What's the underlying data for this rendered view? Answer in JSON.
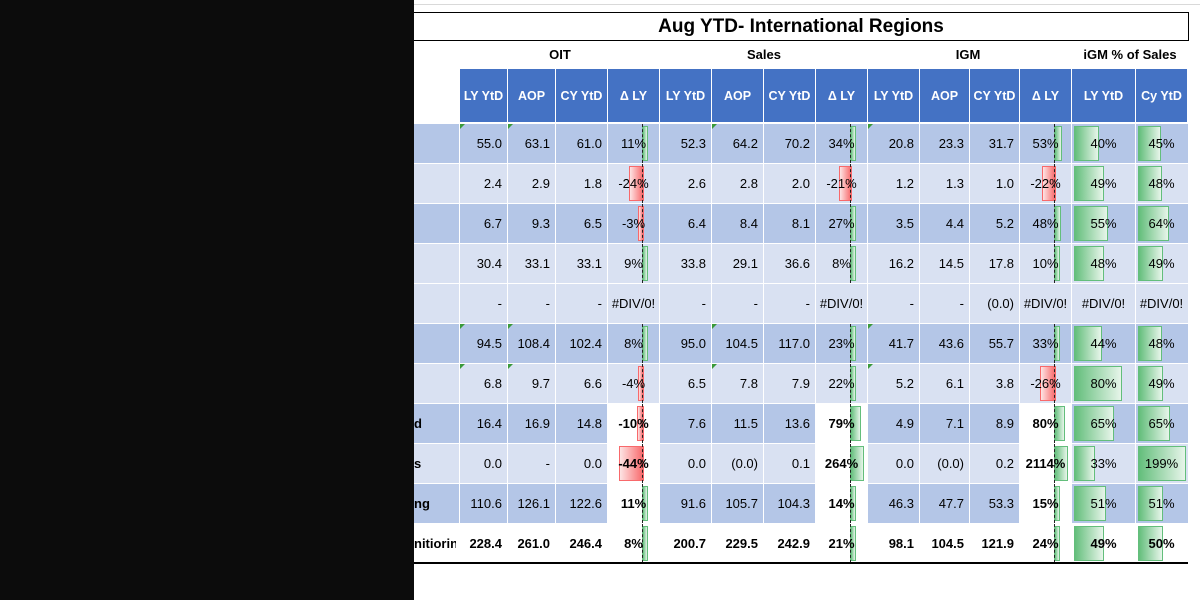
{
  "title": "Aug YTD- International Regions",
  "groups": [
    "OIT",
    "Sales",
    "IGM",
    "iGM % of Sales"
  ],
  "columns": [
    "LY YtD",
    "AOP",
    "CY YtD",
    "Δ LY",
    "LY YtD",
    "AOP",
    "CY YtD",
    "Δ LY",
    "LY YtD",
    "AOP",
    "CY YtD",
    "Δ LY",
    "LY YtD",
    "Cy YtD"
  ],
  "rows": [
    {
      "label": "",
      "bold": false,
      "oit": [
        "55.0",
        "63.1",
        "61.0",
        "11%"
      ],
      "sales": [
        "52.3",
        "64.2",
        "70.2",
        "34%"
      ],
      "igm": [
        "20.8",
        "23.3",
        "31.7",
        "53%"
      ],
      "pct": [
        "40%",
        "45%"
      ]
    },
    {
      "label": "",
      "bold": false,
      "oit": [
        "2.4",
        "2.9",
        "1.8",
        "-24%"
      ],
      "sales": [
        "2.6",
        "2.8",
        "2.0",
        "-21%"
      ],
      "igm": [
        "1.2",
        "1.3",
        "1.0",
        "-22%"
      ],
      "pct": [
        "49%",
        "48%"
      ]
    },
    {
      "label": "",
      "bold": false,
      "oit": [
        "6.7",
        "9.3",
        "6.5",
        "-3%"
      ],
      "sales": [
        "6.4",
        "8.4",
        "8.1",
        "27%"
      ],
      "igm": [
        "3.5",
        "4.4",
        "5.2",
        "48%"
      ],
      "pct": [
        "55%",
        "64%"
      ]
    },
    {
      "label": "",
      "bold": false,
      "oit": [
        "30.4",
        "33.1",
        "33.1",
        "9%"
      ],
      "sales": [
        "33.8",
        "29.1",
        "36.6",
        "8%"
      ],
      "igm": [
        "16.2",
        "14.5",
        "17.8",
        "10%"
      ],
      "pct": [
        "48%",
        "49%"
      ]
    },
    {
      "label": "",
      "bold": false,
      "oit": [
        "-",
        "-",
        "-",
        "#DIV/0!"
      ],
      "sales": [
        "-",
        "-",
        "-",
        "#DIV/0!"
      ],
      "igm": [
        "-",
        "-",
        "(0.0)",
        "#DIV/0!"
      ],
      "pct": [
        "#DIV/0!",
        "#DIV/0!"
      ]
    },
    {
      "label": "",
      "bold": false,
      "oit": [
        "94.5",
        "108.4",
        "102.4",
        "8%"
      ],
      "sales": [
        "95.0",
        "104.5",
        "117.0",
        "23%"
      ],
      "igm": [
        "41.7",
        "43.6",
        "55.7",
        "33%"
      ],
      "pct": [
        "44%",
        "48%"
      ]
    },
    {
      "label": "",
      "bold": false,
      "oit": [
        "6.8",
        "9.7",
        "6.6",
        "-4%"
      ],
      "sales": [
        "6.5",
        "7.8",
        "7.9",
        "22%"
      ],
      "igm": [
        "5.2",
        "6.1",
        "3.8",
        "-26%"
      ],
      "pct": [
        "80%",
        "49%"
      ]
    },
    {
      "label": "d",
      "bold": true,
      "oit": [
        "16.4",
        "16.9",
        "14.8",
        "-10%"
      ],
      "sales": [
        "7.6",
        "11.5",
        "13.6",
        "79%"
      ],
      "igm": [
        "4.9",
        "7.1",
        "8.9",
        "80%"
      ],
      "pct": [
        "65%",
        "65%"
      ]
    },
    {
      "label": "s",
      "bold": true,
      "oit": [
        "0.0",
        "-",
        "0.0",
        "-44%"
      ],
      "sales": [
        "0.0",
        "(0.0)",
        "0.1",
        "264%"
      ],
      "igm": [
        "0.0",
        "(0.0)",
        "0.2",
        "2114%"
      ],
      "pct": [
        "33%",
        "199%"
      ]
    },
    {
      "label": "ng",
      "bold": true,
      "oit": [
        "110.6",
        "126.1",
        "122.6",
        "11%"
      ],
      "sales": [
        "91.6",
        "105.7",
        "104.3",
        "14%"
      ],
      "igm": [
        "46.3",
        "47.7",
        "53.3",
        "15%"
      ],
      "pct": [
        "51%",
        "51%"
      ]
    },
    {
      "label": "nitiorin",
      "bold": true,
      "oit": [
        "228.4",
        "261.0",
        "246.4",
        "8%"
      ],
      "sales": [
        "200.7",
        "229.5",
        "242.9",
        "21%"
      ],
      "igm": [
        "98.1",
        "104.5",
        "121.9",
        "24%"
      ],
      "pct": [
        "49%",
        "50%"
      ]
    }
  ],
  "colors": {
    "header": "#4472c4",
    "row_dark": "#b4c6e7",
    "row_light": "#d9e1f2",
    "row_white": "#ffffff",
    "bar_pos": "#63be7b",
    "bar_neg": "#f8696b"
  }
}
